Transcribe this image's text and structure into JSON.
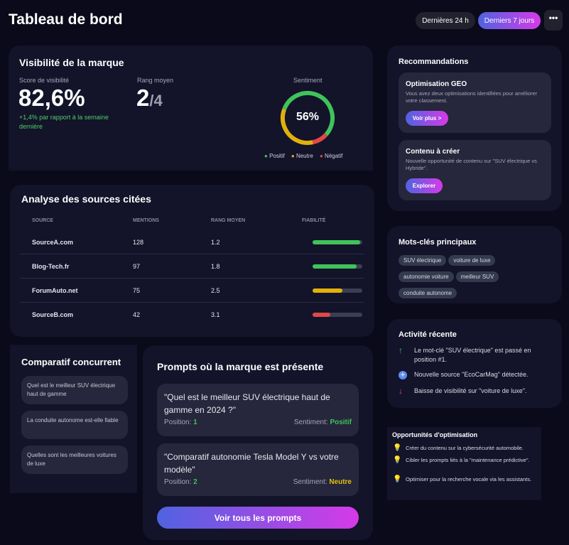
{
  "header": {
    "title": "Tableau de bord",
    "filters": [
      "Dernières 24 h",
      "Derniers 7 jours"
    ],
    "active_filter": "Derniers 7 jours",
    "more_icon": "ellipsis-icon"
  },
  "visibility": {
    "title": "Visibilité de la marque",
    "score_label": "Score de visibilité",
    "score": "82,6%",
    "delta": "+1,4% par rapport à la semaine dernière",
    "rank_label": "Rang moyen",
    "rank": "2",
    "rank_total": "/4",
    "sentiment_label": "Sentiment",
    "sentiment_center": "56%",
    "chart_data": {
      "type": "pie",
      "series": [
        {
          "name": "Positif",
          "value": 56,
          "color": "#3fc45a"
        },
        {
          "name": "Négatif",
          "value": 10,
          "color": "#e04848"
        },
        {
          "name": "Neutre",
          "value": 34,
          "color": "#e2b00c"
        }
      ],
      "legend": [
        "Positif",
        "Neutre",
        "Négatif"
      ],
      "legend_placement": "bottom"
    }
  },
  "sources": {
    "title": "Analyse des sources citées",
    "headers": [
      "SOURCE",
      "MENTIONS",
      "RANG MOYEN",
      "FIABILITÉ"
    ],
    "rows": [
      {
        "source": "SourceA.com",
        "mentions": "128",
        "rank": "1.2",
        "reliability": 0.95,
        "color": "#3fc45a"
      },
      {
        "source": "Blog-Tech.fr",
        "mentions": "97",
        "rank": "1.8",
        "reliability": 0.88,
        "color": "#3fc45a"
      },
      {
        "source": "ForumAuto.net",
        "mentions": "75",
        "rank": "2.5",
        "reliability": 0.6,
        "color": "#e2b00c"
      },
      {
        "source": "SourceB.com",
        "mentions": "42",
        "rank": "3.1",
        "reliability": 0.35,
        "color": "#e04848"
      }
    ]
  },
  "competitor": {
    "title": "Comparatif concurrent",
    "items": [
      "Quel est le meilleur SUV électrique haut de gamme",
      "La conduite autonome est-elle fiable",
      "Quelles sont les meilleures voitures de luxe"
    ]
  },
  "prompts": {
    "title": "Prompts où la marque est présente",
    "position_label": "Position:",
    "sentiment_label": "Sentiment:",
    "items": [
      {
        "text": "\"Quel est le meilleur SUV électrique haut de gamme en 2024 ?\"",
        "position": "1",
        "sentiment": "Positif",
        "sentiment_color": "#3fc45a"
      },
      {
        "text": "\"Comparatif autonomie Tesla Model Y vs votre modèle\"",
        "position": "2",
        "sentiment": "Neutre",
        "sentiment_color": "#e2c00c"
      }
    ],
    "button": "Voir tous les prompts"
  },
  "recommendations": {
    "title": "Recommandations",
    "items": [
      {
        "title": "Optimisation GEO",
        "text": "Vous avez deux optimisations identifiées pour améliorer votre classement.",
        "button": "Voir plus >"
      },
      {
        "title": "Contenu à créer",
        "text": "Nouvelle opportunité de contenu sur \"SUV électrique vs Hybride\".",
        "button": "Explorer"
      }
    ]
  },
  "keywords": {
    "title": "Mots-clés principaux",
    "items": [
      "SUV électrique",
      "voiture de luxe",
      "autonomie voiture",
      "meilleur SUV",
      "conduite autonome"
    ]
  },
  "activity": {
    "title": "Activité récente",
    "items": [
      {
        "icon": "arrow-up-icon",
        "text": "Le mot-clé \"SUV électrique\" est passé en position #1."
      },
      {
        "icon": "plus-circle-icon",
        "text": "Nouvelle source \"EcoCarMag\" détectée."
      },
      {
        "icon": "arrow-down-icon",
        "text": "Baisse de visibilité sur \"voiture de luxe\"."
      }
    ]
  },
  "opportunities": {
    "title": "Opportunités d'optimisation",
    "items": [
      "Créer du contenu sur la cybersécurité automobile.",
      "Cibler les prompts liés à la \"maintenance prédictive\".",
      "Optimiser pour la recherche vocale via les assistants."
    ]
  }
}
